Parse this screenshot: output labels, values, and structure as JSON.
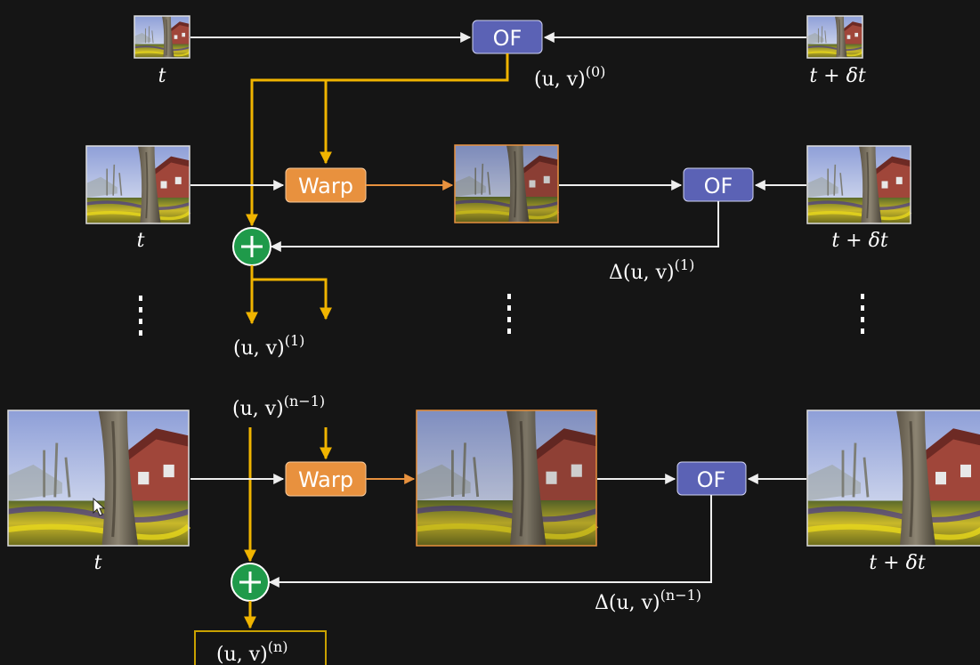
{
  "colors": {
    "background": "#151515",
    "of_box": "#5b62b5",
    "warp_box": "#e8913e",
    "adder": "#1f9a4a",
    "flow_line": "#f0b400",
    "image_line": "#eeeeee",
    "warp_out_line": "#e8913e",
    "output_border": "#c9a100"
  },
  "boxes": {
    "of": "OF",
    "warp": "Warp"
  },
  "labels": {
    "t": "t",
    "t_delta_t": "t + δt",
    "uv": "(u, v)",
    "delta_uv": "Δ(u, v)",
    "sup_0": "(0)",
    "sup_1": "(1)",
    "sup_n_minus_1": "(n−1)",
    "sup_n": "(n)"
  },
  "icons": {
    "adder": "plus-circle-icon",
    "continuation": "vertical-dots-icon",
    "mouse_cursor": "cursor-arrow-icon"
  }
}
